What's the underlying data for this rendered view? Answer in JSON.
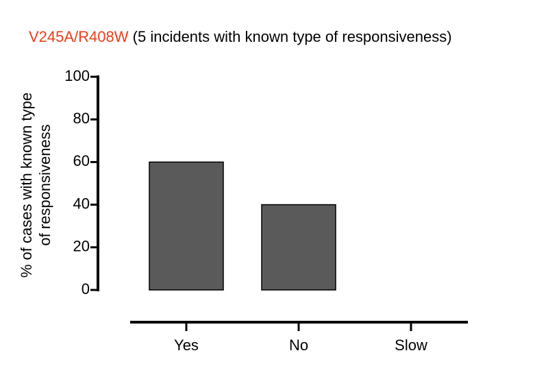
{
  "chart_data": {
    "type": "bar",
    "title": [
      "V245A/R408W",
      "(5 incidents with known type of responsiveness)"
    ],
    "title_colors": [
      "#e8401c",
      "#000000"
    ],
    "ylabel": [
      "% of cases with  known type",
      "of responsiveness"
    ],
    "categories": [
      "Yes",
      "No",
      "Slow"
    ],
    "values": [
      60,
      40,
      0
    ],
    "color": "#5a5a5a",
    "ylim": [
      0,
      100
    ],
    "yticks": [
      0,
      20,
      40,
      60,
      80,
      100
    ]
  }
}
